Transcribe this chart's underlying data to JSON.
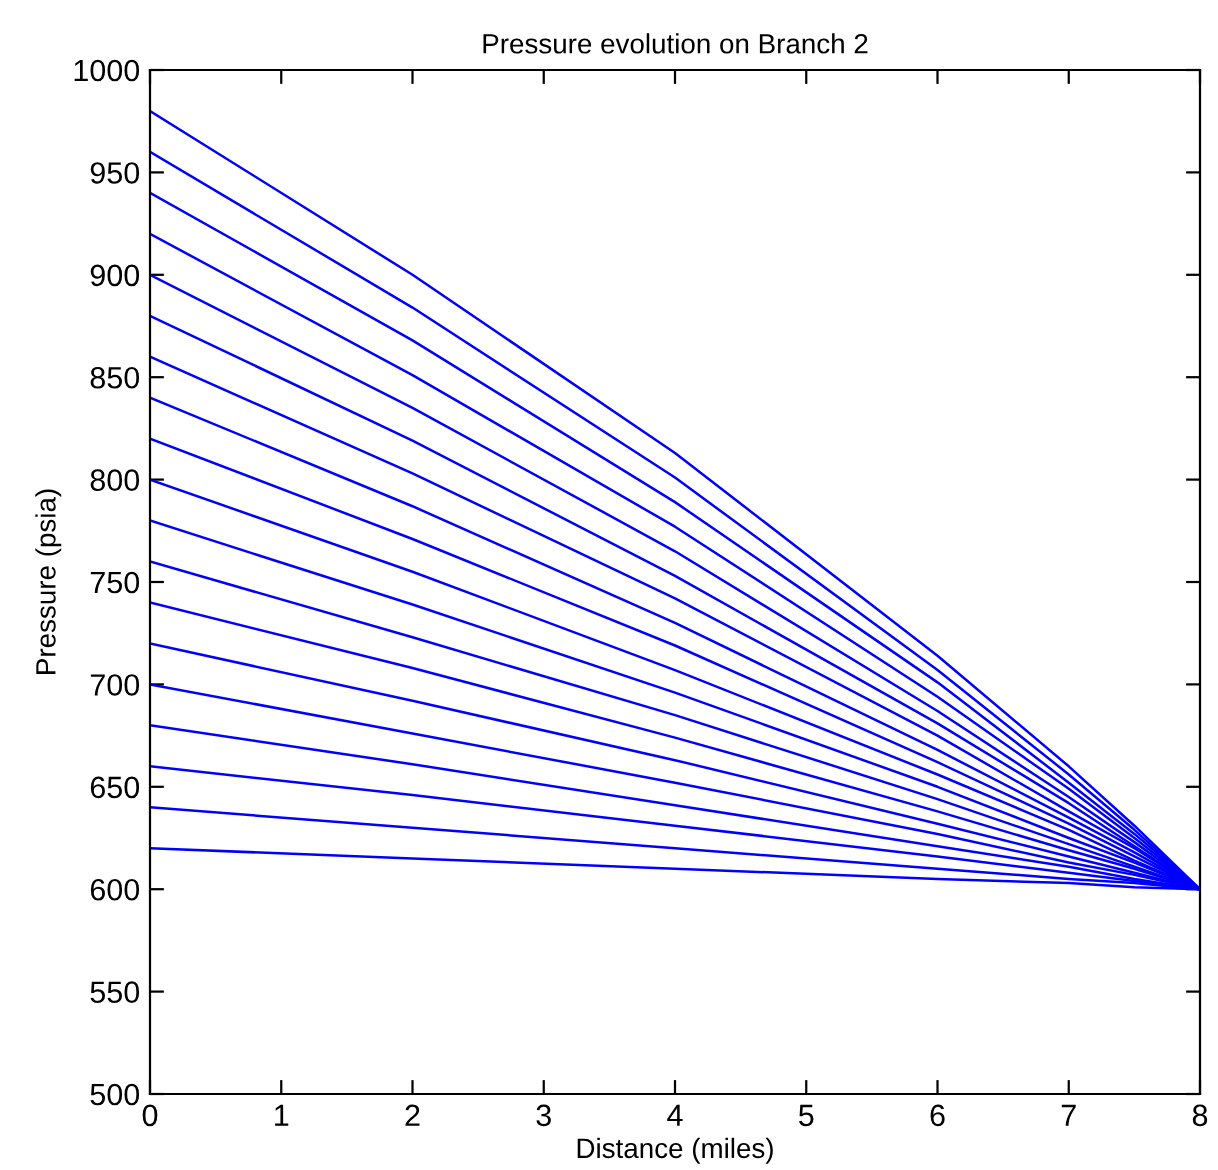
{
  "chart_data": {
    "type": "line",
    "title": "Pressure evolution on Branch 2",
    "xlabel": "Distance (miles)",
    "ylabel": "Pressure (psia)",
    "x": [
      0,
      2,
      4,
      6,
      7,
      7.5,
      8
    ],
    "xlim": [
      0,
      8
    ],
    "xticks": [
      0,
      1,
      2,
      3,
      4,
      5,
      6,
      7,
      8
    ],
    "ylim": [
      500,
      1000
    ],
    "yticks": [
      500,
      550,
      600,
      650,
      700,
      750,
      800,
      850,
      900,
      950,
      1000
    ],
    "grid": false,
    "legend": false,
    "marker": "none",
    "line_style": "solid",
    "series": [
      {
        "color": "#0000ff",
        "values": [
          620,
          615,
          610,
          605,
          603,
          601,
          600
        ]
      },
      {
        "color": "#0000ff",
        "values": [
          640,
          630,
          620,
          610,
          605,
          603,
          600
        ]
      },
      {
        "color": "#0000ff",
        "values": [
          660,
          646,
          631,
          616,
          608,
          604,
          600
        ]
      },
      {
        "color": "#0000ff",
        "values": [
          680,
          661,
          641,
          621,
          611,
          605,
          600
        ]
      },
      {
        "color": "#0000ff",
        "values": [
          700,
          676,
          652,
          627,
          613,
          607,
          600
        ]
      },
      {
        "color": "#0000ff",
        "values": [
          720,
          692,
          663,
          632,
          616,
          608,
          600
        ]
      },
      {
        "color": "#0000ff",
        "values": [
          740,
          708,
          674,
          638,
          619,
          610,
          600
        ]
      },
      {
        "color": "#0000ff",
        "values": [
          760,
          723,
          685,
          644,
          622,
          611,
          600
        ]
      },
      {
        "color": "#0000ff",
        "values": [
          780,
          739,
          696,
          650,
          625,
          613,
          600
        ]
      },
      {
        "color": "#0000ff",
        "values": [
          800,
          755,
          707,
          656,
          629,
          614,
          600
        ]
      },
      {
        "color": "#0000ff",
        "values": [
          820,
          771,
          719,
          662,
          632,
          616,
          600
        ]
      },
      {
        "color": "#0000ff",
        "values": [
          840,
          787,
          730,
          668,
          635,
          618,
          600
        ]
      },
      {
        "color": "#0000ff",
        "values": [
          860,
          803,
          742,
          675,
          638,
          620,
          600
        ]
      },
      {
        "color": "#0000ff",
        "values": [
          880,
          819,
          753,
          681,
          642,
          621,
          600
        ]
      },
      {
        "color": "#0000ff",
        "values": [
          900,
          835,
          765,
          687,
          645,
          623,
          600
        ]
      },
      {
        "color": "#0000ff",
        "values": [
          920,
          851,
          777,
          694,
          649,
          625,
          600
        ]
      },
      {
        "color": "#0000ff",
        "values": [
          940,
          868,
          789,
          701,
          652,
          627,
          600
        ]
      },
      {
        "color": "#0000ff",
        "values": [
          960,
          884,
          801,
          707,
          656,
          629,
          600
        ]
      },
      {
        "color": "#0000ff",
        "values": [
          980,
          900,
          813,
          714,
          660,
          631,
          600
        ]
      }
    ]
  }
}
